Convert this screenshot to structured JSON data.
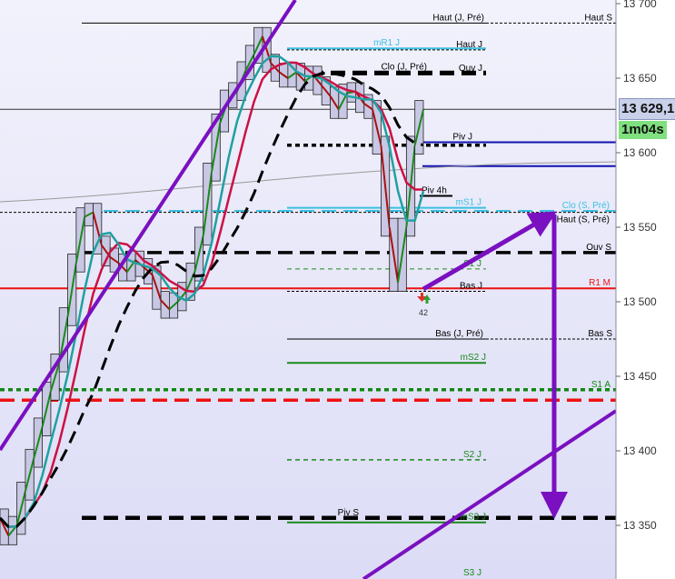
{
  "chart_data": {
    "type": "line",
    "title": "",
    "xlabel": "",
    "ylabel": "",
    "ylim": [
      13310,
      13702
    ],
    "grid": false,
    "y_ticks": [
      "13 350",
      "13 400",
      "13 450",
      "13 500",
      "13 550",
      "13 600",
      "13 650",
      "13 700"
    ],
    "y_tick_values": [
      13350,
      13400,
      13450,
      13500,
      13550,
      13600,
      13650,
      13700
    ],
    "price": [
      13355,
      13343,
      13350,
      13373,
      13395,
      13416,
      13440,
      13459,
      13490,
      13526,
      13557,
      13560,
      13538,
      13530,
      13526,
      13520,
      13528,
      13523,
      13518,
      13501,
      13495,
      13500,
      13507,
      13520,
      13544,
      13587,
      13620,
      13636,
      13641,
      13655,
      13666,
      13678,
      13660,
      13654,
      13650,
      13654,
      13648,
      13652,
      13645,
      13638,
      13629,
      13640,
      13641,
      13633,
      13629,
      13605,
      13550,
      13513,
      13550,
      13605,
      13629
    ],
    "levels": [
      {
        "label": "Haut (J, Pré)",
        "value": 13687,
        "color": "#000000",
        "dash": "solid"
      },
      {
        "label": "Haut S",
        "value": 13687,
        "color": "#000000",
        "dash": "dashed"
      },
      {
        "label": "mR1 J",
        "value": 13670,
        "color": "#3cc0e0",
        "dash": "solid"
      },
      {
        "label": "Haut J",
        "value": 13669,
        "color": "#000000",
        "dash": "dashed"
      },
      {
        "label": "Clo (J, Pré)",
        "value": 13654,
        "color": "#000000",
        "dash": "long-dash"
      },
      {
        "label": "Ouv J",
        "value": 13653,
        "color": "#000000",
        "dash": "long-dash"
      },
      {
        "label": "Piv J",
        "value": 13607,
        "color": "#1010b0",
        "dash": "solid"
      },
      {
        "label": "",
        "value": 13605,
        "color": "#000000",
        "dash": "dotted"
      },
      {
        "label": "",
        "value": 13591,
        "color": "#1010b0",
        "dash": "solid"
      },
      {
        "label": "Piv 4h",
        "value": 13571,
        "color": "#000000",
        "dash": "solid"
      },
      {
        "label": "mS1 J",
        "value": 13563,
        "color": "#3cc0e0",
        "dash": "solid"
      },
      {
        "label": "Clo (S, Pré)",
        "value": 13561,
        "color": "#3cc0e0",
        "dash": "long-dash"
      },
      {
        "label": "Haut (S, Pré)",
        "value": 13560,
        "color": "#000000",
        "dash": "dashed"
      },
      {
        "label": "Ouv S",
        "value": 13533,
        "color": "#000000",
        "dash": "long-dash"
      },
      {
        "label": "S1 J",
        "value": 13522,
        "color": "#1a8a1a",
        "dash": "dotted"
      },
      {
        "label": "R1 M",
        "value": 13509,
        "color": "#ee1111",
        "dash": "solid"
      },
      {
        "label": "Bas J",
        "value": 13507,
        "color": "#000000",
        "dash": "dashed"
      },
      {
        "label": "Bas (J, Pré)",
        "value": 13475,
        "color": "#000000",
        "dash": "solid"
      },
      {
        "label": "Bas S",
        "value": 13475,
        "color": "#000000",
        "dash": "dashed"
      },
      {
        "label": "mS2 J",
        "value": 13459,
        "color": "#1a8a1a",
        "dash": "solid"
      },
      {
        "label": "S1 A",
        "value": 13441,
        "color": "#118811",
        "dash": "dotted"
      },
      {
        "label": "",
        "value": 13434,
        "color": "#ee1111",
        "dash": "long-dash"
      },
      {
        "label": "S2 J",
        "value": 13394,
        "color": "#1a8a1a",
        "dash": "dotted"
      },
      {
        "label": "Piv S",
        "value": 13355,
        "color": "#000000",
        "dash": "long-dash"
      },
      {
        "label": "mS3 J",
        "value": 13352,
        "color": "#1a8a1a",
        "dash": "solid"
      },
      {
        "label": "S3 J",
        "value": 13312,
        "color": "#1a8a1a",
        "dash": "dotted"
      }
    ],
    "moving_averages": [
      {
        "color": "#cc1144",
        "period": 6
      },
      {
        "color": "#20a0a0",
        "period": 4
      },
      {
        "color": "#000000",
        "period": 12,
        "dash": "long-dash"
      }
    ],
    "signal_marker": {
      "text": "42"
    },
    "colors": {
      "background": "#e4e4f8",
      "trendline": "#7a10c0",
      "long_ma": "#999999"
    }
  },
  "current_price": "13 629,1",
  "timer": "1m04s"
}
